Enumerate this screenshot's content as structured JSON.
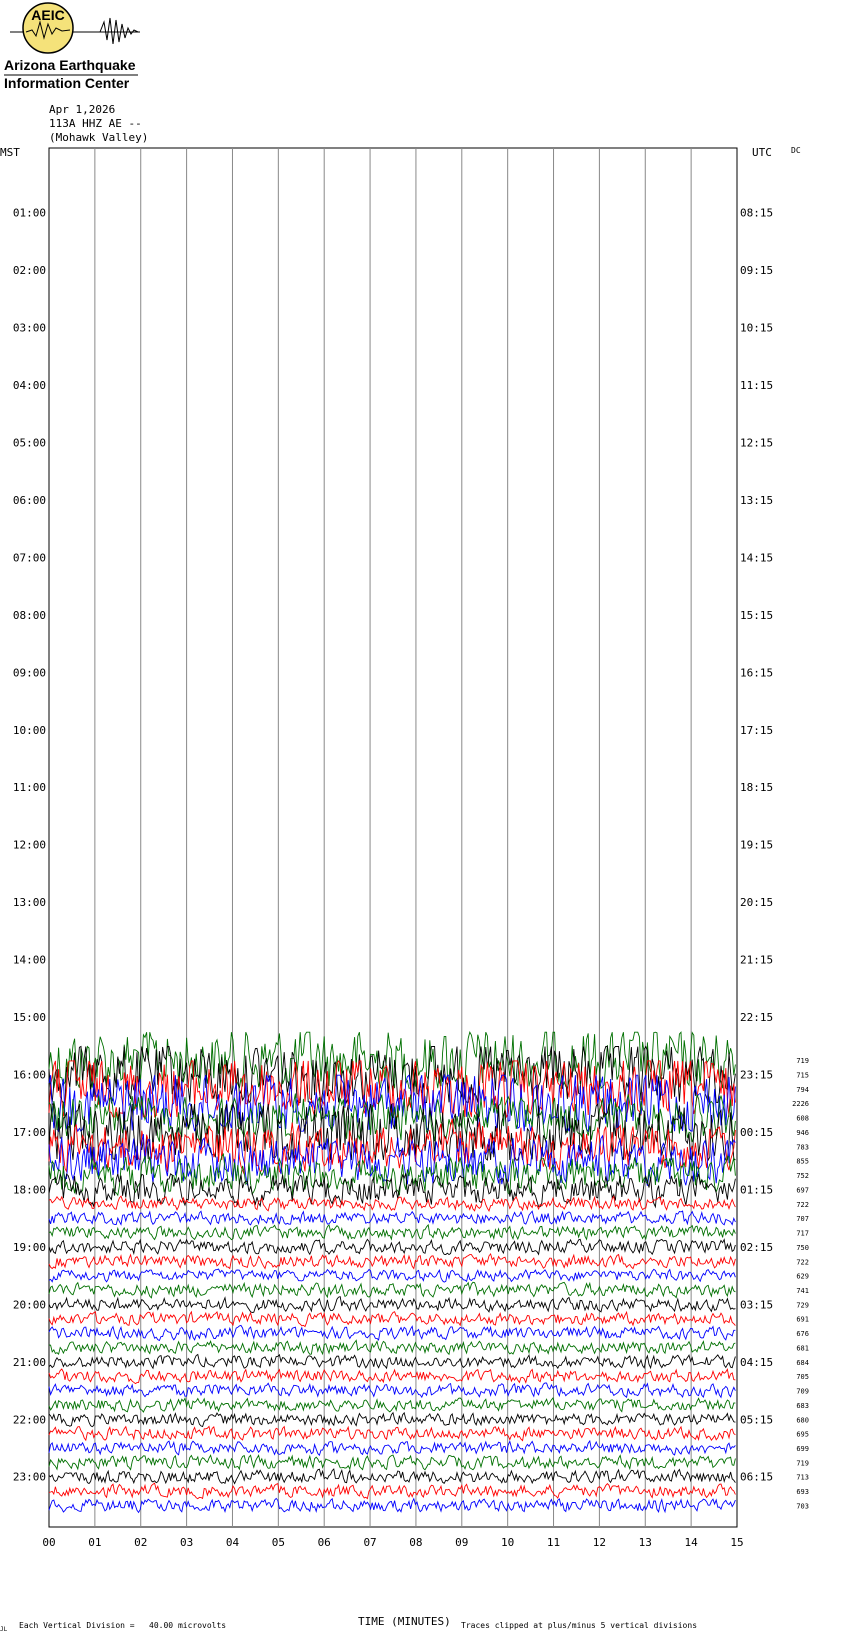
{
  "header": {
    "date": "Apr 1,2026",
    "station": "113A HHZ AE --",
    "location": "(Mohawk Valley)",
    "left_zone": "MST",
    "right_zone": "UTC",
    "dc_tag": "DC"
  },
  "logo": {
    "acronym": "AEIC",
    "line1": "Arizona Earthquake",
    "line2": "Information Center",
    "badge_color": "#F5E27A"
  },
  "footer": {
    "scale_text": "Each Vertical Division =   40.00 microvolts",
    "axis_title": "TIME (MINUTES)",
    "clip_note": "Traces clipped at plus/minus 5 vertical divisions",
    "corner_mark": "JL"
  },
  "chart_data": {
    "type": "line",
    "title": "",
    "xlabel": "TIME (MINUTES)",
    "xlim": [
      0,
      15
    ],
    "x_ticks": [
      "00",
      "01",
      "02",
      "03",
      "04",
      "05",
      "06",
      "07",
      "08",
      "09",
      "10",
      "11",
      "12",
      "13",
      "14",
      "15"
    ],
    "left_hour_labels": [
      "01:00",
      "02:00",
      "03:00",
      "04:00",
      "05:00",
      "06:00",
      "07:00",
      "08:00",
      "09:00",
      "10:00",
      "11:00",
      "12:00",
      "13:00",
      "14:00",
      "15:00",
      "16:00",
      "17:00",
      "18:00",
      "19:00",
      "20:00",
      "21:00",
      "22:00",
      "23:00"
    ],
    "right_hour_labels": [
      "08:15",
      "09:15",
      "10:15",
      "11:15",
      "12:15",
      "13:15",
      "14:15",
      "15:15",
      "16:15",
      "17:15",
      "18:15",
      "19:15",
      "20:15",
      "21:15",
      "22:15",
      "23:15",
      "00:15",
      "01:15",
      "02:15",
      "03:15",
      "04:15",
      "05:15",
      "06:15"
    ],
    "trace_colors": [
      "#000000",
      "#ff0000",
      "#0000ff",
      "#007000"
    ],
    "first_trace_index": 63,
    "total_trace_slots": 96,
    "traces_per_hour": 4,
    "trace_rms_values": [
      "719",
      "715",
      "794",
      "2226",
      "608",
      "946",
      "783",
      "855",
      "752",
      "697",
      "722",
      "707",
      "717",
      "750",
      "722",
      "629",
      "741",
      "729",
      "691",
      "676",
      "681",
      "684",
      "705",
      "709",
      "683",
      "680",
      "695",
      "699",
      "719",
      "713",
      "693",
      "703"
    ],
    "clip_divisions": 5,
    "microvolts_per_division": 40.0
  }
}
